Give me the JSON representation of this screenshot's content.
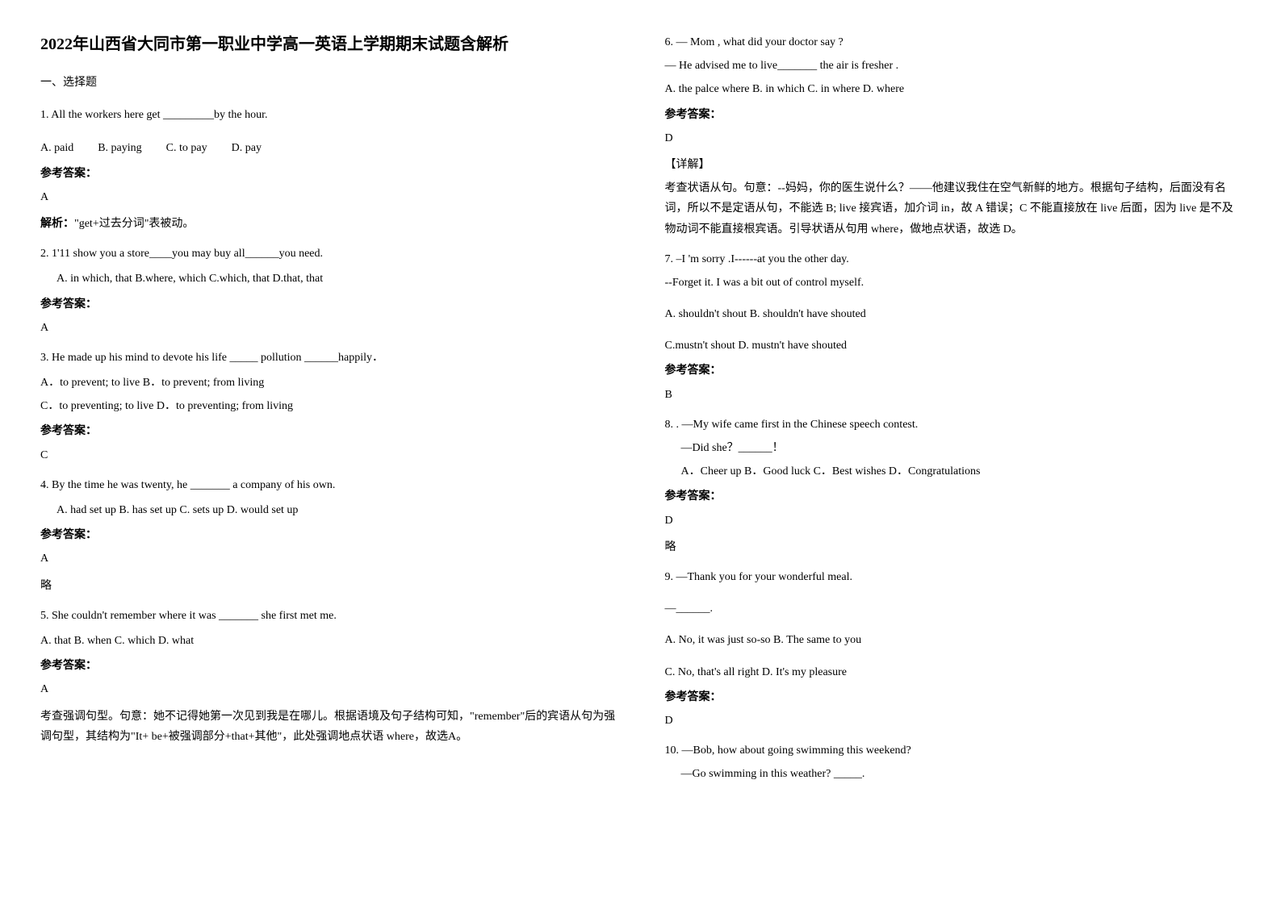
{
  "title": "2022年山西省大同市第一职业中学高一英语上学期期末试题含解析",
  "section1": "一、选择题",
  "q1": {
    "text": "1. All the workers here get _________by the hour.",
    "optA": "A. paid",
    "optB": "B. paying",
    "optC": "C. to pay",
    "optD": "D. pay",
    "answerLabel": "参考答案：",
    "answer": "A",
    "explanationLabel": "解析：",
    "explanation": "\"get+过去分词\"表被动。"
  },
  "q2": {
    "text": "2. 1'11 show you a store____you may buy all______you need.",
    "opts": "A. in which, that   B.where, which   C.which, that   D.that, that",
    "answerLabel": "参考答案：",
    "answer": "A"
  },
  "q3": {
    "text": "3. He made up his mind to devote his life _____ pollution ______happily．",
    "line1": "A．to prevent; to live    B．to prevent; from living",
    "line2": "C．to preventing; to live        D．to preventing; from living",
    "answerLabel": "参考答案：",
    "answer": "C"
  },
  "q4": {
    "text": "4. By the time he was twenty, he _______  a company of his own.",
    "opts": "A. had set up     B. has set up      C. sets up      D. would set up",
    "answerLabel": "参考答案：",
    "answer": "A",
    "note": "略"
  },
  "q5": {
    "text": "5. She couldn't remember where it was _______ she first met me.",
    "opts": "A. that   B. when   C. which   D. what",
    "answerLabel": "参考答案：",
    "answer": "A",
    "explanation": "考查强调句型。句意：她不记得她第一次见到我是在哪儿。根据语境及句子结构可知，\"remember\"后的宾语从句为强调句型，其结构为\"It+ be+被强调部分+that+其他\"，此处强调地点状语 where，故选A。"
  },
  "q6": {
    "line1": "6. — Mom , what did your doctor say ?",
    "line2": "— He advised me to live_______ the air is fresher .",
    "opts": "A. the palce where       B. in which      C. in where      D. where",
    "answerLabel": "参考答案：",
    "answer": "D",
    "detailLabel": "【详解】",
    "explanation": "考查状语从句。句意：--妈妈，你的医生说什么？——他建议我住在空气新鲜的地方。根据句子结构，后面没有名词，所以不是定语从句，不能选 B; live 接宾语，加介词 in，故 A 错误；C 不能直接放在 live 后面，因为 live 是不及物动词不能直接根宾语。引导状语从句用 where，做地点状语，故选 D。"
  },
  "q7": {
    "line1": "7. –I 'm sorry .I------at you the other day.",
    "line2": "--Forget it. I was a bit out of control myself.",
    "optsLine1": "A. shouldn't shout    B. shouldn't have shouted",
    "optsLine2": "C.mustn't shout     D. mustn't have shouted",
    "answerLabel": "参考答案：",
    "answer": "B"
  },
  "q8": {
    "line1": "8. .  —My wife came first in the Chinese speech contest.",
    "line2": "—Did she？______！",
    "opts": "A．Cheer up        B．Good luck         C．Best wishes         D．Congratulations",
    "answerLabel": "参考答案：",
    "answer": "D",
    "note": "略"
  },
  "q9": {
    "line1": "9. —Thank you for your wonderful meal.",
    "line2": "—______.",
    "optsLine1": "A. No, it was just so-so      B. The same to you",
    "optsLine2": "C. No, that's all right         D. It's my pleasure",
    "answerLabel": "参考答案：",
    "answer": "D"
  },
  "q10": {
    "line1": "10. —Bob, how about going swimming this weekend?",
    "line2": "—Go swimming in this weather? _____."
  }
}
